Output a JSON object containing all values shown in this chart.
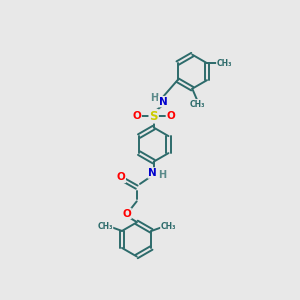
{
  "bg": "#e8e8e8",
  "bond_color": "#2d6b6b",
  "N_color": "#0000cd",
  "O_color": "#ff0000",
  "S_color": "#cccc00",
  "H_color": "#5a8a8a",
  "lw": 1.4,
  "R": 0.42,
  "xlim": [
    -1.7,
    2.1
  ],
  "ylim": [
    -3.1,
    2.6
  ]
}
